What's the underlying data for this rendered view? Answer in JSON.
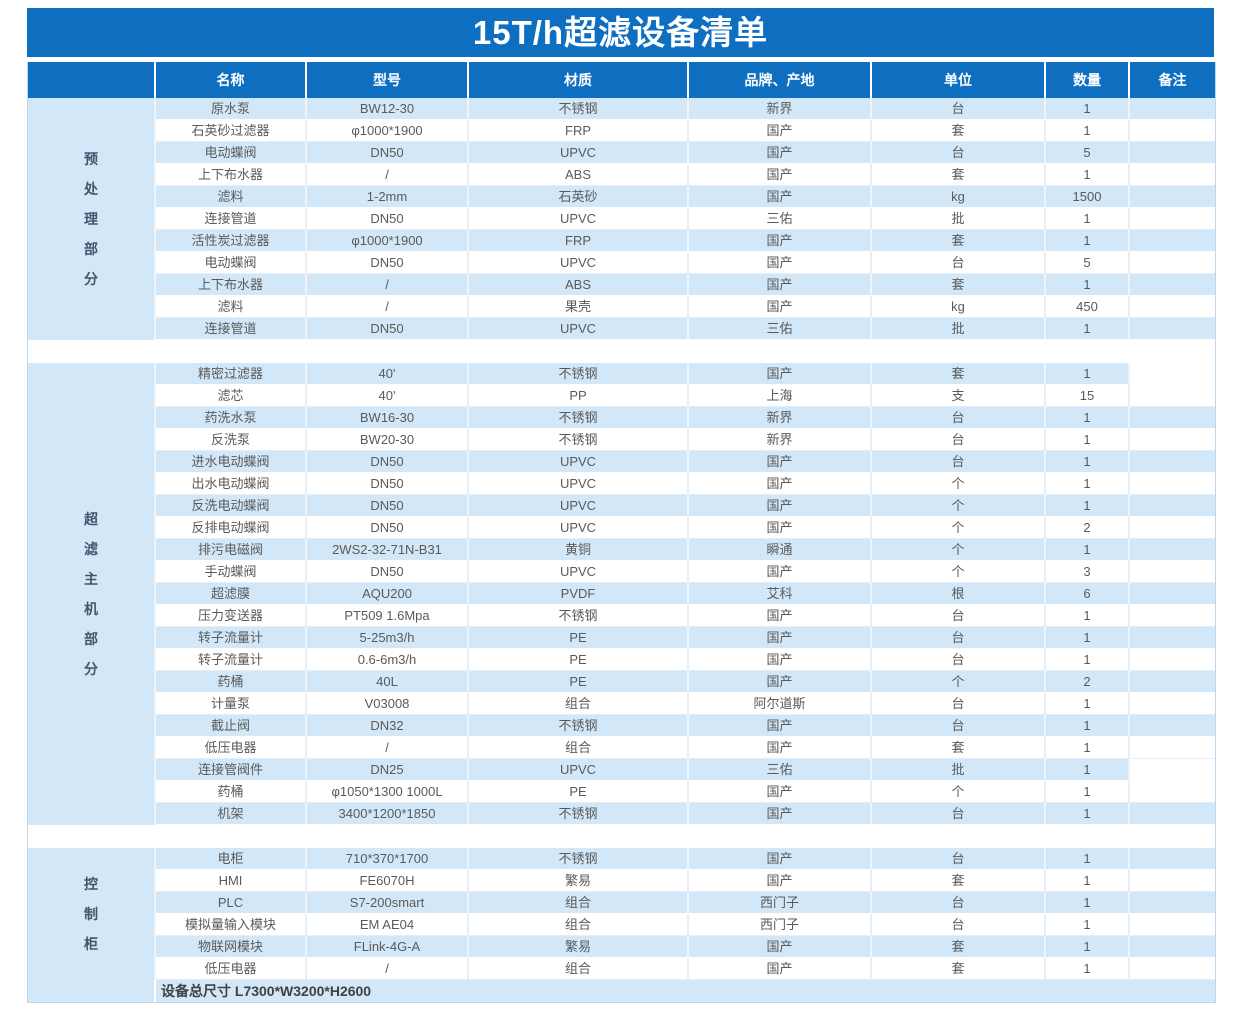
{
  "title": "15T/h超滤设备清单",
  "colors": {
    "header_blue": "#0e6fc1",
    "band_light_blue": "#d2e8f8",
    "body_text_gray": "#5a5a5a",
    "category_text": "#44546a",
    "footer_text": "#404040"
  },
  "table": {
    "columns": [
      "名称",
      "型号",
      "材质",
      "品牌、产地",
      "单位",
      "数量",
      "备注"
    ],
    "sections": [
      {
        "category": "预处理部分",
        "rows": [
          [
            "原水泵",
            "BW12-30",
            "不锈钢",
            "新界",
            "台",
            "1",
            ""
          ],
          [
            "石英砂过滤器",
            "φ1000*1900",
            "FRP",
            "国产",
            "套",
            "1",
            ""
          ],
          [
            "电动蝶阀",
            "DN50",
            "UPVC",
            "国产",
            "台",
            "5",
            ""
          ],
          [
            "上下布水器",
            "/",
            "ABS",
            "国产",
            "套",
            "1",
            ""
          ],
          [
            "滤料",
            "1-2mm",
            "石英砂",
            "国产",
            "kg",
            "1500",
            ""
          ],
          [
            "连接管道",
            "DN50",
            "UPVC",
            "三佑",
            "批",
            "1",
            ""
          ],
          [
            "活性炭过滤器",
            "φ1000*1900",
            "FRP",
            "国产",
            "套",
            "1",
            ""
          ],
          [
            "电动蝶阀",
            "DN50",
            "UPVC",
            "国产",
            "台",
            "5",
            ""
          ],
          [
            "上下布水器",
            "/",
            "ABS",
            "国产",
            "套",
            "1",
            ""
          ],
          [
            "滤料",
            "/",
            "果壳",
            "国产",
            "kg",
            "450",
            ""
          ],
          [
            "连接管道",
            "DN50",
            "UPVC",
            "三佑",
            "批",
            "1",
            ""
          ]
        ]
      },
      {
        "category": "超滤主机部分",
        "rows": [
          [
            "精密过滤器",
            "40'",
            "不锈钢",
            "国产",
            "套",
            "1",
            ""
          ],
          [
            "滤芯",
            "40'",
            "PP",
            "上海",
            "支",
            "15",
            ""
          ],
          [
            "药洗水泵",
            "BW16-30",
            "不锈钢",
            "新界",
            "台",
            "1",
            ""
          ],
          [
            "反洗泵",
            "BW20-30",
            "不锈钢",
            "新界",
            "台",
            "1",
            ""
          ],
          [
            "进水电动蝶阀",
            "DN50",
            "UPVC",
            "国产",
            "台",
            "1",
            ""
          ],
          [
            "出水电动蝶阀",
            "DN50",
            "UPVC",
            "国产",
            "个",
            "1",
            ""
          ],
          [
            "反洗电动蝶阀",
            "DN50",
            "UPVC",
            "国产",
            "个",
            "1",
            ""
          ],
          [
            "反排电动蝶阀",
            "DN50",
            "UPVC",
            "国产",
            "个",
            "2",
            ""
          ],
          [
            "排污电磁阀",
            "2WS2-32-71N-B31",
            "黄铜",
            "瞬通",
            "个",
            "1",
            ""
          ],
          [
            "手动蝶阀",
            "DN50",
            "UPVC",
            "国产",
            "个",
            "3",
            ""
          ],
          [
            "超滤膜",
            "AQU200",
            "PVDF",
            "艾科",
            "根",
            "6",
            ""
          ],
          [
            "压力变送器",
            "PT509 1.6Mpa",
            "不锈钢",
            "国产",
            "台",
            "1",
            ""
          ],
          [
            "转子流量计",
            "5-25m3/h",
            "PE",
            "国产",
            "台",
            "1",
            ""
          ],
          [
            "转子流量计",
            "0.6-6m3/h",
            "PE",
            "国产",
            "台",
            "1",
            ""
          ],
          [
            "药桶",
            "40L",
            "PE",
            "国产",
            "个",
            "2",
            ""
          ],
          [
            "计量泵",
            "V03008",
            "组合",
            "阿尔道斯",
            "台",
            "1",
            ""
          ],
          [
            "截止阀",
            "DN32",
            "不锈钢",
            "国产",
            "台",
            "1",
            ""
          ],
          [
            "低压电器",
            "/",
            "组合",
            "国产",
            "套",
            "1",
            ""
          ],
          [
            "连接管阀件",
            "DN25",
            "UPVC",
            "三佑",
            "批",
            "1",
            ""
          ],
          [
            "药桶",
            "φ1050*1300 1000L",
            "PE",
            "国产",
            "个",
            "1",
            ""
          ],
          [
            "机架",
            "3400*1200*1850",
            "不锈钢",
            "国产",
            "台",
            "1",
            ""
          ]
        ]
      },
      {
        "category": "控制柜",
        "rows": [
          [
            "电柜",
            "710*370*1700",
            "不锈钢",
            "国产",
            "台",
            "1",
            ""
          ],
          [
            "HMI",
            "FE6070H",
            "繁易",
            "国产",
            "套",
            "1",
            ""
          ],
          [
            "PLC",
            "S7-200smart",
            "组合",
            "西门子",
            "台",
            "1",
            ""
          ],
          [
            "模拟量输入模块",
            "EM AE04",
            "组合",
            "西门子",
            "台",
            "1",
            ""
          ],
          [
            "物联网模块",
            "FLink-4G-A",
            "繁易",
            "国产",
            "套",
            "1",
            ""
          ],
          [
            "低压电器",
            "/",
            "组合",
            "国产",
            "套",
            "1",
            ""
          ]
        ]
      }
    ],
    "white_remark_cells": [
      [
        1,
        0
      ],
      [
        1,
        18
      ]
    ],
    "footer": "设备总尺寸 L7300*W3200*H2600"
  }
}
